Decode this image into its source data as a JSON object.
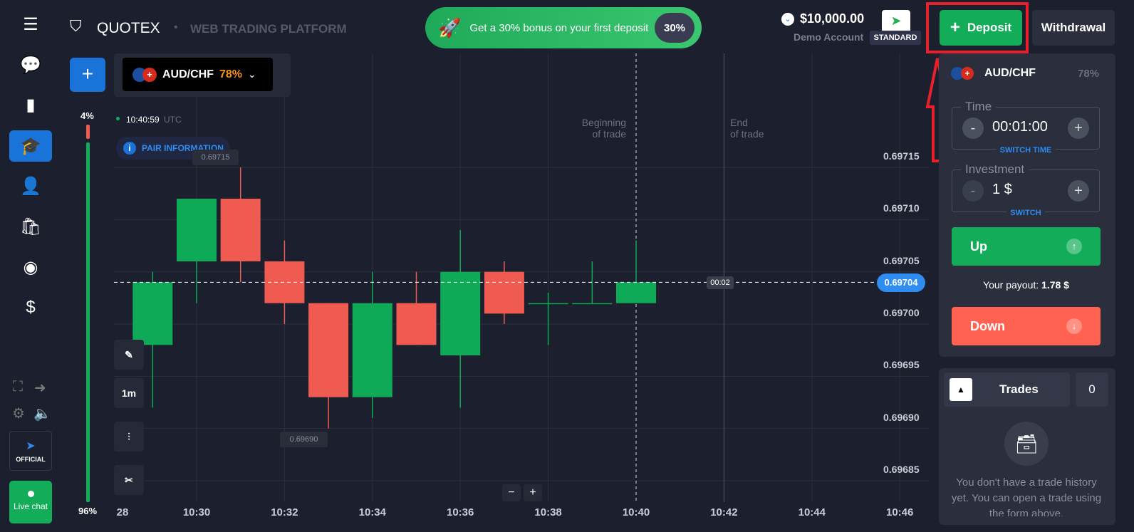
{
  "header": {
    "brand": "QUOTEX",
    "subtitle": "WEB TRADING PLATFORM",
    "promo_text": "Get a 30% bonus on your first deposit",
    "promo_badge": "30%",
    "balance": "$10,000.00",
    "account_type": "Demo Account",
    "account_tier": "STANDARD",
    "deposit_label": "Deposit",
    "withdrawal_label": "Withdrawal"
  },
  "sidebar": {
    "items": [
      "menu-icon",
      "help-icon",
      "analytics-icon",
      "education-icon",
      "profile-icon",
      "market-icon",
      "signals-icon",
      "coins-icon"
    ],
    "selected": "education-icon",
    "official_label": "OFFICIAL",
    "live_chat_label": "Live chat"
  },
  "asset": {
    "pair": "AUD/CHF",
    "payout": "78%"
  },
  "chart": {
    "clock": "10:40:59",
    "tz": "UTC",
    "pair_info": "PAIR INFORMATION",
    "sentiment_top": "4%",
    "sentiment_bottom": "96%",
    "sentiment_down": 4,
    "sentiment_up": 96,
    "timeframe": "1m",
    "max_marker": "0.69715",
    "min_marker": "0.69690",
    "current_price": "0.69704",
    "countdown": "00:02",
    "beginning": "Beginning",
    "beginning2": "of trade",
    "end": "End",
    "end2": "of trade",
    "zoom_out": "−",
    "zoom_in": "+"
  },
  "chart_data": {
    "type": "candlestick",
    "y_ticks": [
      "0.69715",
      "0.69710",
      "0.69705",
      "0.69700",
      "0.69695",
      "0.69690",
      "0.69685"
    ],
    "x_ticks": [
      "28",
      "10:30",
      "10:32",
      "10:34",
      "10:36",
      "10:38",
      "10:40",
      "10:42",
      "10:44",
      "10:46"
    ],
    "candles": [
      {
        "t": "10:28",
        "o": 0.69696,
        "h": 0.69698,
        "l": 0.69696,
        "c": 0.69698
      },
      {
        "t": "10:29",
        "o": 0.69698,
        "h": 0.69705,
        "l": 0.69692,
        "c": 0.69704
      },
      {
        "t": "10:30",
        "o": 0.69706,
        "h": 0.69712,
        "l": 0.69702,
        "c": 0.69712
      },
      {
        "t": "10:31",
        "o": 0.69712,
        "h": 0.69715,
        "l": 0.69704,
        "c": 0.69706
      },
      {
        "t": "10:32",
        "o": 0.69706,
        "h": 0.69708,
        "l": 0.697,
        "c": 0.69702
      },
      {
        "t": "10:33",
        "o": 0.69702,
        "h": 0.69702,
        "l": 0.6969,
        "c": 0.69693
      },
      {
        "t": "10:34",
        "o": 0.69693,
        "h": 0.69705,
        "l": 0.69691,
        "c": 0.69702
      },
      {
        "t": "10:35",
        "o": 0.69702,
        "h": 0.69705,
        "l": 0.69698,
        "c": 0.69698
      },
      {
        "t": "10:36",
        "o": 0.69697,
        "h": 0.69709,
        "l": 0.69692,
        "c": 0.69705
      },
      {
        "t": "10:37",
        "o": 0.69705,
        "h": 0.69706,
        "l": 0.697,
        "c": 0.69701
      },
      {
        "t": "10:38",
        "o": 0.69702,
        "h": 0.69703,
        "l": 0.69698,
        "c": 0.69702
      },
      {
        "t": "10:39",
        "o": 0.69702,
        "h": 0.69706,
        "l": 0.69702,
        "c": 0.69702
      },
      {
        "t": "10:40",
        "o": 0.69702,
        "h": 0.69708,
        "l": 0.69702,
        "c": 0.69704
      }
    ],
    "current": 0.69704,
    "trade_start": "10:40",
    "trade_end": "10:42",
    "colors": {
      "up": "#0faa57",
      "down": "#ef5b50"
    }
  },
  "panel": {
    "time_label": "Time",
    "time_value": "00:01:00",
    "switch_time": "SWITCH TIME",
    "investment_label": "Investment",
    "investment_value": "1 $",
    "switch": "SWITCH",
    "up_label": "Up",
    "payout_label": "Your payout:",
    "payout_value": "1.78 $",
    "down_label": "Down",
    "trades_label": "Trades",
    "trades_count": "0",
    "empty_text": "You don't have a trade history yet. You can open a trade using the form above."
  },
  "colors": {
    "accent": "#1a73d9",
    "green": "#13ad5a",
    "red": "#ff6251",
    "annotation": "#e8202a"
  }
}
